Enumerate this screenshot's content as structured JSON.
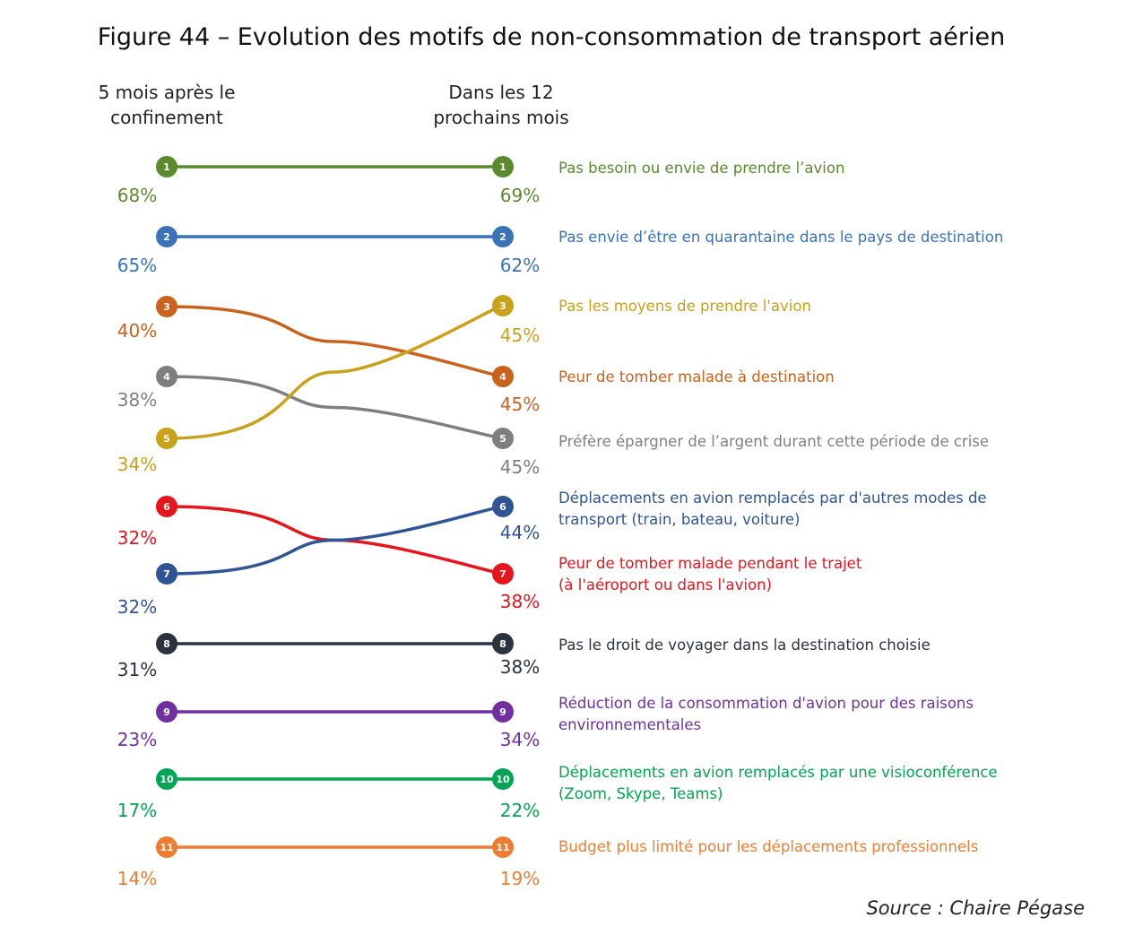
{
  "chart_data": {
    "type": "slope",
    "title": "Figure 44 – Evolution des motifs de non-consommation de transport aérien",
    "columns": [
      "5 mois après le\nconfinement",
      "Dans les 12\nprochains mois"
    ],
    "source": "Source : Chaire Pégase",
    "series": [
      {
        "name": "Pas besoin ou envie de prendre l’avion",
        "color": "#5a8a2e",
        "from_rank": 1,
        "to_rank": 1,
        "from_value": "68%",
        "to_value": "69%"
      },
      {
        "name": "Pas envie d’être en quarantaine dans le pays de destination",
        "color": "#3a73b7",
        "from_rank": 2,
        "to_rank": 2,
        "from_value": "65%",
        "to_value": "62%"
      },
      {
        "name": "Peur de tomber malade à destination",
        "color": "#c8621c",
        "from_rank": 3,
        "to_rank": 4,
        "from_value": "40%",
        "to_value": "45%"
      },
      {
        "name": "Préfère épargner de l’argent durant cette période de crise",
        "color": "#7f7f7f",
        "from_rank": 4,
        "to_rank": 5,
        "from_value": "38%",
        "to_value": "45%"
      },
      {
        "name": "Pas les moyens de prendre l'avion",
        "color": "#c9a21a",
        "from_rank": 5,
        "to_rank": 3,
        "from_value": "34%",
        "to_value": "45%"
      },
      {
        "name": "Peur de tomber malade pendant le trajet\n(à l'aéroport ou dans l'avion)",
        "color": "#e8141c",
        "from_rank": 6,
        "to_rank": 7,
        "from_value": "32%",
        "to_value": "38%"
      },
      {
        "name": "Déplacements en avion remplacés par d'autres modes de\ntransport (train, bateau, voiture)",
        "color": "#2f5597",
        "from_rank": 7,
        "to_rank": 6,
        "from_value": "32%",
        "to_value": "44%"
      },
      {
        "name": "Pas le droit de voyager dans la destination choisie",
        "color": "#2b3340",
        "from_rank": 8,
        "to_rank": 8,
        "from_value": "31%",
        "to_value": "38%"
      },
      {
        "name": "Réduction de la consommation d'avion pour des raisons\nenvironnementales",
        "color": "#7030a0",
        "from_rank": 9,
        "to_rank": 9,
        "from_value": "23%",
        "to_value": "34%"
      },
      {
        "name": "Déplacements en avion remplacés par une visioconférence\n(Zoom, Skype, Teams)",
        "color": "#00a651",
        "from_rank": 10,
        "to_rank": 10,
        "from_value": "17%",
        "to_value": "22%"
      },
      {
        "name": "Budget plus limité pour les déplacements professionnels",
        "color": "#ee7d31",
        "from_rank": 11,
        "to_rank": 11,
        "from_value": "14%",
        "to_value": "19%"
      }
    ]
  }
}
